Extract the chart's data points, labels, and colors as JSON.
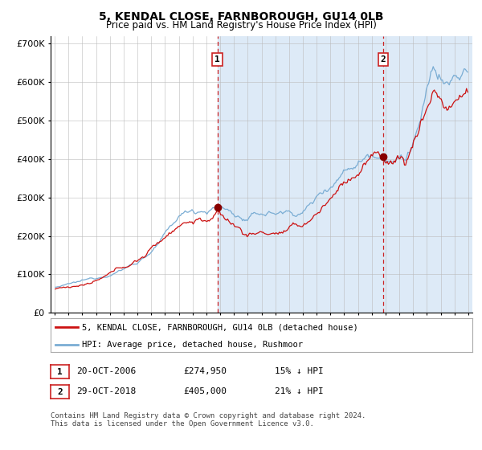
{
  "title": "5, KENDAL CLOSE, FARNBOROUGH, GU14 0LB",
  "subtitle": "Price paid vs. HM Land Registry's House Price Index (HPI)",
  "legend_property": "5, KENDAL CLOSE, FARNBOROUGH, GU14 0LB (detached house)",
  "legend_hpi": "HPI: Average price, detached house, Rushmoor",
  "sale1_date": "20-OCT-2006",
  "sale1_price": 274950,
  "sale1_label": "1",
  "sale1_hpi_diff": "15% ↓ HPI",
  "sale2_date": "29-OCT-2018",
  "sale2_price": 405000,
  "sale2_label": "2",
  "sale2_hpi_diff": "21% ↓ HPI",
  "footnote1": "Contains HM Land Registry data © Crown copyright and database right 2024.",
  "footnote2": "This data is licensed under the Open Government Licence v3.0.",
  "hpi_color": "#7aadd4",
  "property_color": "#cc1111",
  "dot_color": "#880000",
  "vline_color": "#cc2222",
  "bg_color": "#ddeaf7",
  "grid_color": "#bbbbbb",
  "ylim": [
    0,
    720000
  ],
  "yticks": [
    0,
    100000,
    200000,
    300000,
    400000,
    500000,
    600000,
    700000
  ],
  "xlim_start": 1994.7,
  "xlim_end": 2025.3,
  "sale1_year": 2006.8,
  "sale2_year": 2018.83,
  "figwidth": 6.0,
  "figheight": 5.6,
  "dpi": 100
}
